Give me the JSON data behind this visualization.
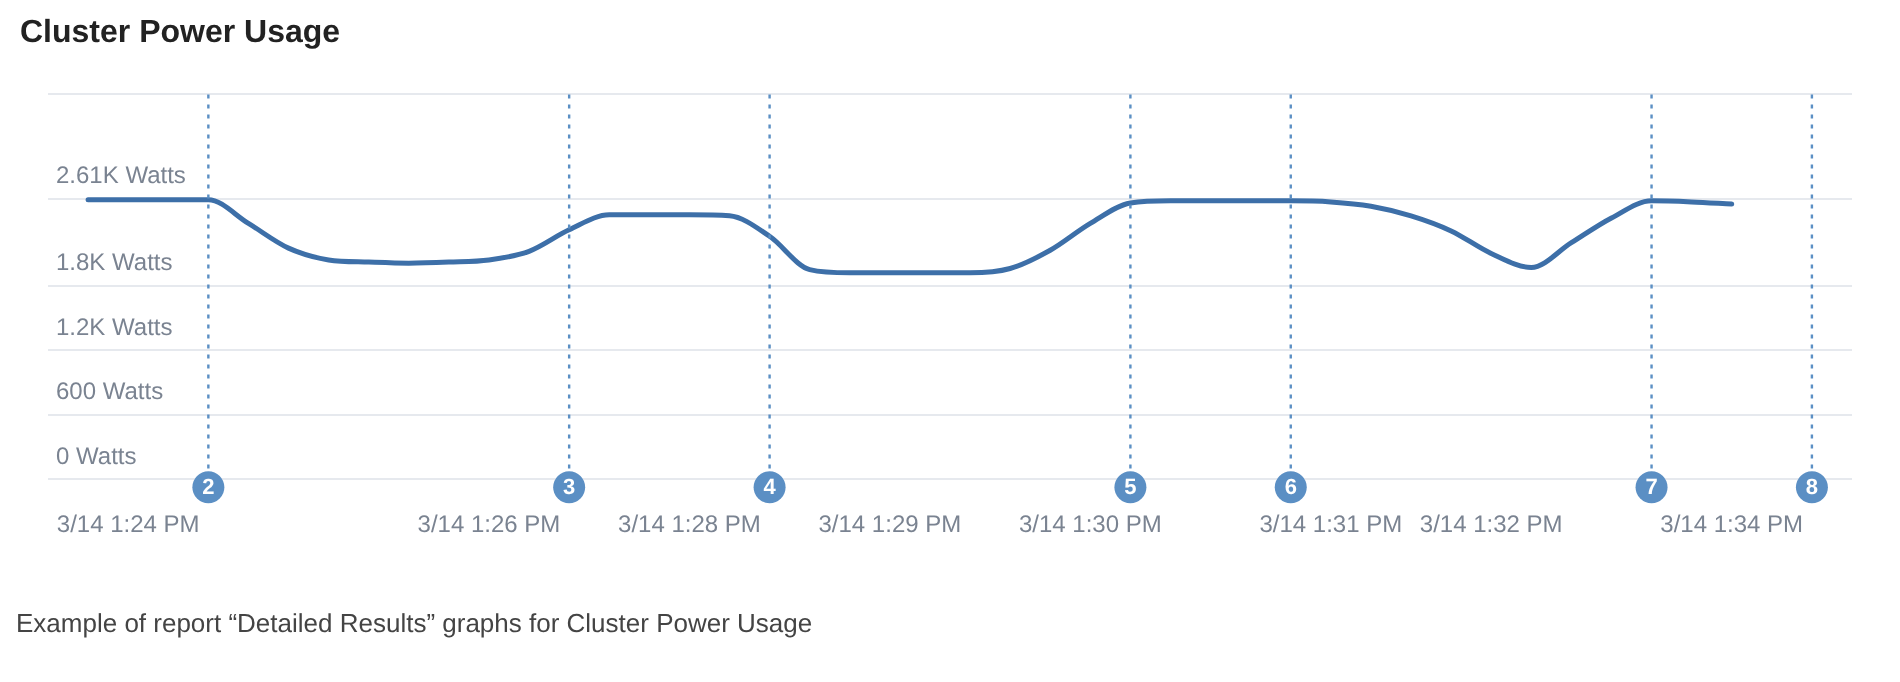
{
  "chart_data": {
    "type": "line",
    "title": "Cluster Power Usage",
    "annotations": [
      "Example of report “Detailed Results” graphs for Cluster Power Usage"
    ],
    "categories": [
      null,
      null,
      "3/14 1:24 PM",
      null,
      "2",
      null,
      null,
      null,
      null,
      null,
      null,
      "3/14 1:26 PM",
      null,
      "3",
      null,
      null,
      "3/14 1:28 PM",
      null,
      "4",
      null,
      null,
      "3/14 1:29 PM",
      null,
      null,
      null,
      null,
      "3/14 1:30 PM",
      "5",
      null,
      null,
      null,
      "6",
      "3/14 1:31 PM",
      null,
      null,
      null,
      "3/14 1:32 PM",
      null,
      null,
      null,
      "7",
      null,
      "3/14 1:34 PM",
      null,
      "8",
      null
    ],
    "series": [
      {
        "color": "#3d6fa8",
        "values": [
          null,
          2600,
          2600,
          2600,
          2600,
          2380,
          2150,
          2040,
          2020,
          2010,
          2020,
          2040,
          2120,
          2320,
          2460,
          2460,
          2460,
          2450,
          2260,
          1950,
          1920,
          1920,
          1920,
          1920,
          1960,
          2130,
          2380,
          2570,
          2590,
          2590,
          2590,
          2590,
          2580,
          2540,
          2450,
          2310,
          2100,
          1970,
          2200,
          2430,
          2590,
          2580,
          2560,
          null,
          null,
          null
        ]
      }
    ],
    "ylim": [
      0,
      3580
    ],
    "yticks": [
      {
        "value": 0,
        "label": "0 Watts"
      },
      {
        "value": 600,
        "label": "600 Watts"
      },
      {
        "value": 1200,
        "label": "1.2K Watts"
      },
      {
        "value": 1800,
        "label": "1.8K Watts"
      },
      {
        "value": 2610,
        "label": "2.61K Watts"
      },
      {
        "value": 3580,
        "label": null
      }
    ],
    "ref_lines": [
      {
        "axis": "x",
        "value": "2",
        "color": "#5b8fc4",
        "line_style": "dotted"
      },
      {
        "axis": "x",
        "value": "3",
        "color": "#5b8fc4",
        "line_style": "dotted"
      },
      {
        "axis": "x",
        "value": "4",
        "color": "#5b8fc4",
        "line_style": "dotted"
      },
      {
        "axis": "x",
        "value": "5",
        "color": "#5b8fc4",
        "line_style": "dotted"
      },
      {
        "axis": "x",
        "value": "6",
        "color": "#5b8fc4",
        "line_style": "dotted"
      },
      {
        "axis": "x",
        "value": "7",
        "color": "#5b8fc4",
        "line_style": "dotted"
      },
      {
        "axis": "x",
        "value": "8",
        "color": "#5b8fc4",
        "line_style": "dotted"
      }
    ],
    "grid": "y",
    "marker": "none",
    "line_style": "solid",
    "legend": false
  }
}
